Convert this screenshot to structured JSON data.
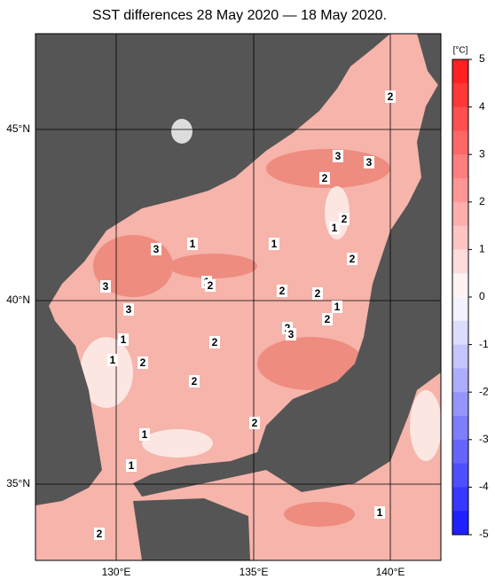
{
  "title": "SST differences 28 May 2020 — 18 May 2020.",
  "lat_labels": [
    "45°N",
    "40°N",
    "35°N"
  ],
  "lon_labels": [
    "130°E",
    "135°E",
    "140°E"
  ],
  "colorbar": {
    "unit": "[°C]",
    "ticks": [
      5,
      4,
      3,
      2,
      1,
      0,
      -1,
      -2,
      -3,
      -4,
      -5
    ]
  },
  "contour_labels": [
    "3",
    "3",
    "2",
    "2",
    "2",
    "1",
    "3",
    "1",
    "1",
    "2",
    "3",
    "1",
    "2",
    "2",
    "2",
    "1",
    "3",
    "2",
    "2",
    "3",
    "1",
    "2",
    "1",
    "2",
    "2",
    "2",
    "1",
    "1",
    "1",
    "2"
  ]
}
